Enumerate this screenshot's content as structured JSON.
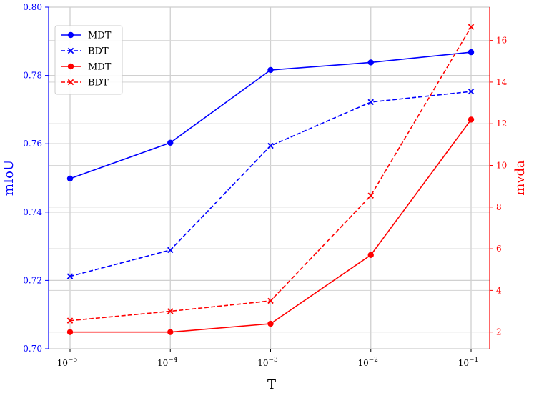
{
  "chart_data": {
    "type": "line",
    "xlabel": "T",
    "ylabel_left": "mIoU",
    "ylabel_right": "mvda",
    "x_scale": "log",
    "x": [
      1e-05,
      0.0001,
      0.001,
      0.01,
      0.1
    ],
    "x_tick_labels": [
      {
        "base": "10",
        "exp": "−5"
      },
      {
        "base": "10",
        "exp": "−4"
      },
      {
        "base": "10",
        "exp": "−3"
      },
      {
        "base": "10",
        "exp": "−2"
      },
      {
        "base": "10",
        "exp": "−1"
      }
    ],
    "ylim_left": [
      0.7,
      0.8
    ],
    "yticks_left": [
      "0.70",
      "0.72",
      "0.74",
      "0.76",
      "0.78",
      "0.80"
    ],
    "ylim_right": [
      1.2,
      17.6
    ],
    "yticks_right": [
      "2",
      "4",
      "6",
      "8",
      "10",
      "12",
      "14",
      "16"
    ],
    "grid": true,
    "legend_position": "top-left",
    "series": [
      {
        "name": "MDT",
        "axis": "left",
        "color": "#0000ff",
        "linestyle": "solid",
        "marker": "circle",
        "values": [
          0.7498,
          0.7603,
          0.7816,
          0.7838,
          0.7868
        ]
      },
      {
        "name": "BDT",
        "axis": "left",
        "color": "#0000ff",
        "linestyle": "dashed",
        "marker": "x",
        "values": [
          0.7212,
          0.7289,
          0.7594,
          0.7722,
          0.7753
        ]
      },
      {
        "name": "MDT",
        "axis": "right",
        "color": "#ff0000",
        "linestyle": "solid",
        "marker": "circle",
        "values": [
          2.0,
          2.0,
          2.4,
          5.7,
          12.2
        ]
      },
      {
        "name": "BDT",
        "axis": "right",
        "color": "#ff0000",
        "linestyle": "dashed",
        "marker": "x",
        "values": [
          2.55,
          3.0,
          3.5,
          8.55,
          16.65
        ]
      }
    ]
  }
}
